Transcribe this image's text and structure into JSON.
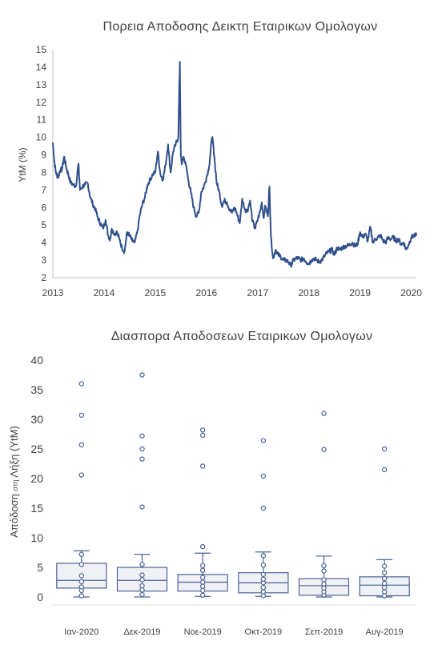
{
  "colors": {
    "line": "#2f4f8a",
    "box_stroke": "#4a6296",
    "box_fill": "#f0f1f4",
    "axis": "#bfbfbf",
    "text": "#404040"
  },
  "chart_data": [
    {
      "type": "line",
      "title": "Πορεια Αποδοσης Δεικτη Εταιρικων Ομολογων",
      "ylabel": "YtM (%)",
      "xlabel": "",
      "x_ticks": [
        "2013",
        "2014",
        "2015",
        "2016",
        "2017",
        "2018",
        "2019",
        "2020"
      ],
      "y_ticks": [
        "2",
        "3",
        "4",
        "5",
        "6",
        "7",
        "8",
        "9",
        "10",
        "11",
        "12",
        "13",
        "14",
        "15"
      ],
      "xlim": [
        2013,
        2020.1
      ],
      "ylim": [
        2,
        15
      ],
      "grid": false,
      "series": [
        {
          "x": [
            2013.0,
            2013.03,
            2013.06,
            2013.1,
            2013.14,
            2013.18,
            2013.22,
            2013.26,
            2013.3,
            2013.35,
            2013.4,
            2013.45,
            2013.5,
            2013.53,
            2013.58,
            2013.63,
            2013.68,
            2013.73,
            2013.78,
            2013.83,
            2013.88,
            2013.93,
            2013.98,
            2014.03,
            2014.08,
            2014.12,
            2014.15,
            2014.2,
            2014.25,
            2014.3,
            2014.35,
            2014.4,
            2014.45,
            2014.5,
            2014.55,
            2014.6,
            2014.65,
            2014.7,
            2014.75,
            2014.8,
            2014.85,
            2014.9,
            2014.95,
            2015.0,
            2015.05,
            2015.1,
            2015.15,
            2015.2,
            2015.25,
            2015.3,
            2015.35,
            2015.4,
            2015.45,
            2015.48,
            2015.5,
            2015.52,
            2015.55,
            2015.6,
            2015.65,
            2015.7,
            2015.75,
            2015.8,
            2015.85,
            2015.9,
            2015.95,
            2016.0,
            2016.05,
            2016.1,
            2016.12,
            2016.15,
            2016.2,
            2016.25,
            2016.3,
            2016.35,
            2016.4,
            2016.45,
            2016.5,
            2016.55,
            2016.6,
            2016.65,
            2016.7,
            2016.75,
            2016.8,
            2016.85,
            2016.9,
            2016.95,
            2017.0,
            2017.05,
            2017.08,
            2017.12,
            2017.15,
            2017.2,
            2017.23,
            2017.26,
            2017.3,
            2017.35,
            2017.4,
            2017.45,
            2017.5,
            2017.55,
            2017.6,
            2017.65,
            2017.7,
            2017.75,
            2017.8,
            2017.85,
            2017.9,
            2017.95,
            2018.0,
            2018.05,
            2018.1,
            2018.15,
            2018.2,
            2018.25,
            2018.3,
            2018.35,
            2018.4,
            2018.45,
            2018.5,
            2018.55,
            2018.6,
            2018.65,
            2018.7,
            2018.75,
            2018.8,
            2018.85,
            2018.9,
            2018.95,
            2019.0,
            2019.05,
            2019.1,
            2019.15,
            2019.2,
            2019.25,
            2019.3,
            2019.35,
            2019.4,
            2019.45,
            2019.5,
            2019.55,
            2019.6,
            2019.65,
            2019.7,
            2019.75,
            2019.8,
            2019.85,
            2019.9,
            2019.95,
            2020.0,
            2020.05,
            2020.1
          ],
          "y": [
            9.7,
            8.6,
            8.0,
            7.7,
            8.1,
            8.2,
            8.9,
            8.3,
            7.9,
            7.4,
            7.3,
            7.2,
            8.5,
            7.0,
            7.2,
            7.3,
            7.4,
            6.6,
            6.2,
            5.9,
            5.4,
            5.1,
            4.8,
            5.3,
            4.4,
            4.2,
            4.8,
            4.5,
            4.6,
            4.2,
            3.7,
            3.5,
            4.6,
            4.4,
            4.1,
            4.0,
            4.6,
            5.6,
            6.2,
            6.6,
            7.3,
            7.6,
            7.9,
            8.0,
            9.2,
            7.9,
            7.6,
            8.4,
            9.6,
            8.0,
            9.2,
            9.6,
            10.0,
            14.3,
            8.9,
            8.5,
            8.9,
            8.4,
            7.5,
            6.8,
            6.0,
            5.5,
            5.7,
            6.9,
            7.2,
            7.7,
            8.3,
            9.8,
            9.9,
            9.0,
            7.4,
            6.9,
            6.1,
            6.4,
            6.3,
            5.9,
            5.7,
            6.0,
            5.6,
            5.1,
            6.5,
            5.9,
            5.8,
            6.4,
            5.2,
            4.8,
            5.3,
            5.8,
            6.3,
            5.4,
            6.1,
            5.5,
            7.2,
            4.3,
            3.1,
            3.6,
            3.3,
            3.2,
            3.0,
            3.0,
            2.9,
            2.7,
            3.0,
            3.1,
            3.1,
            3.0,
            3.1,
            2.9,
            2.8,
            3.0,
            3.1,
            3.0,
            2.9,
            3.0,
            3.2,
            3.4,
            3.5,
            3.6,
            3.3,
            3.7,
            3.6,
            3.7,
            3.8,
            3.8,
            3.9,
            4.0,
            3.8,
            3.9,
            4.6,
            4.3,
            4.5,
            4.1,
            4.9,
            4.0,
            4.2,
            4.3,
            4.4,
            4.1,
            4.0,
            4.3,
            4.2,
            4.3,
            4.1,
            4.2,
            3.9,
            4.0,
            3.6,
            3.9,
            4.3,
            4.4,
            4.4
          ]
        }
      ]
    },
    {
      "type": "box",
      "title": "Διασπορα Αποδοσεων Εταιρικων Ομολογων",
      "ylabel_parts": [
        "Απόδοση ",
        "στη",
        " Λήξη (YtM)"
      ],
      "xlabel": "",
      "categories": [
        "Ιαν-2020",
        "Δεκ-2019",
        "Νοε-2019",
        "Οκτ-2019",
        "Σεπ-2019",
        "Αυγ-2019"
      ],
      "y_ticks": [
        "0",
        "5",
        "10",
        "15",
        "20",
        "25",
        "30",
        "35",
        "40"
      ],
      "ylim": [
        0,
        40
      ],
      "grid": false,
      "boxes": [
        {
          "min": 0.0,
          "q1": 1.5,
          "median": 2.8,
          "q3": 5.7,
          "max": 7.8,
          "points": [
            0.2,
            1.1,
            1.7,
            2.6,
            3.6,
            5.5,
            7.2
          ],
          "outliers": [
            20.6,
            25.7,
            30.7,
            36.0
          ]
        },
        {
          "min": 0.0,
          "q1": 1.0,
          "median": 2.8,
          "q3": 5.0,
          "max": 7.2,
          "points": [
            0.4,
            1.2,
            1.9,
            2.9,
            3.7,
            5.5
          ],
          "outliers": [
            15.2,
            23.3,
            25.0,
            27.2,
            37.5
          ]
        },
        {
          "min": 0.1,
          "q1": 1.0,
          "median": 2.5,
          "q3": 3.8,
          "max": 7.4,
          "points": [
            0.3,
            1.1,
            1.8,
            2.5,
            3.3,
            4.5,
            5.3
          ],
          "outliers": [
            8.5,
            22.1,
            27.3,
            28.2
          ]
        },
        {
          "min": 0.1,
          "q1": 0.7,
          "median": 2.4,
          "q3": 4.1,
          "max": 7.6,
          "points": [
            0.2,
            0.9,
            1.6,
            2.4,
            3.0,
            3.8,
            5.4,
            7.0
          ],
          "outliers": [
            15.0,
            20.4,
            26.4
          ]
        },
        {
          "min": 0.0,
          "q1": 0.3,
          "median": 1.9,
          "q3": 3.1,
          "max": 6.9,
          "points": [
            0.3,
            0.9,
            1.5,
            2.2,
            2.9,
            4.4,
            5.3
          ],
          "outliers": [
            24.9,
            31.0
          ]
        },
        {
          "min": 0.0,
          "q1": 0.2,
          "median": 2.0,
          "q3": 3.4,
          "max": 6.3,
          "points": [
            0.2,
            0.9,
            1.6,
            2.3,
            3.1,
            4.1,
            5.2
          ],
          "outliers": [
            21.5,
            25.0
          ]
        }
      ]
    }
  ]
}
